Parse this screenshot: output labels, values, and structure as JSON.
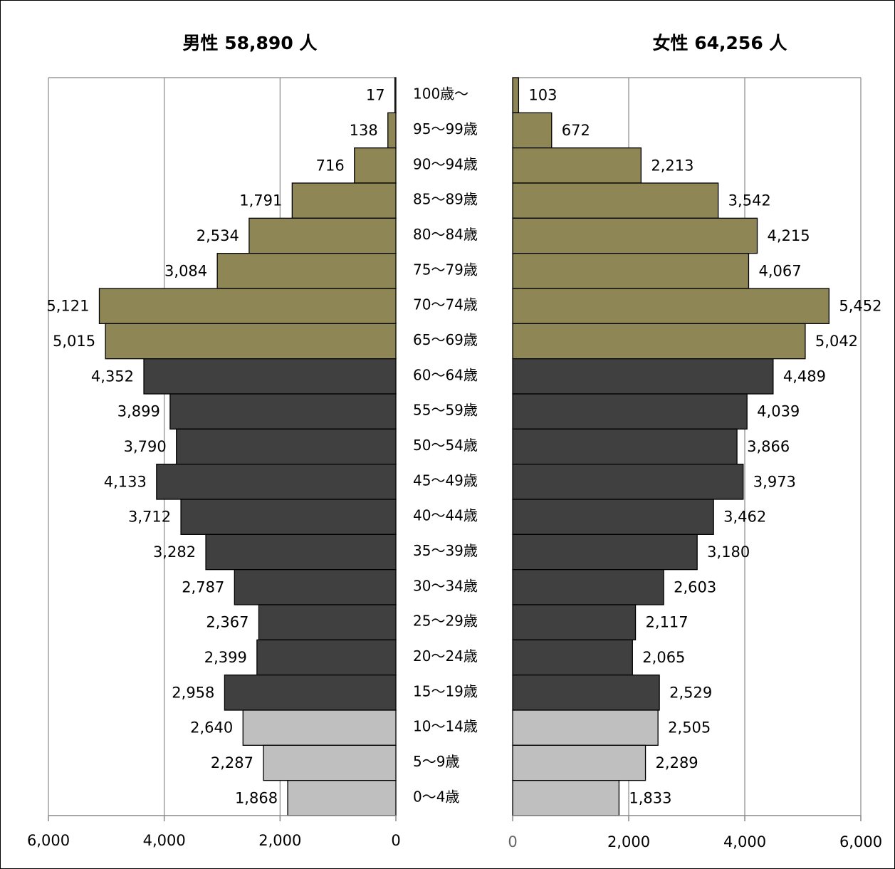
{
  "chart_data": {
    "type": "bar",
    "male_title": "男性 58,890 人",
    "female_title": "女性 64,256 人",
    "categories": [
      "100歳～",
      "95～99歳",
      "90～94歳",
      "85～89歳",
      "80～84歳",
      "75～79歳",
      "70～74歳",
      "65～69歳",
      "60～64歳",
      "55～59歳",
      "50～54歳",
      "45～49歳",
      "40～44歳",
      "35～39歳",
      "30～34歳",
      "25～29歳",
      "20～24歳",
      "15～19歳",
      "10～14歳",
      "5～9歳",
      "0～4歳"
    ],
    "series": [
      {
        "name": "男性",
        "values": [
          17,
          138,
          716,
          1791,
          2534,
          3084,
          5121,
          5015,
          4352,
          3899,
          3790,
          4133,
          3712,
          3282,
          2787,
          2367,
          2399,
          2958,
          2640,
          2287,
          1868
        ]
      },
      {
        "name": "女性",
        "values": [
          103,
          672,
          2213,
          3542,
          4215,
          4067,
          5452,
          5042,
          4489,
          4039,
          3866,
          3973,
          3462,
          3180,
          2603,
          2117,
          2065,
          2529,
          2505,
          2289,
          1833
        ]
      }
    ],
    "value_labels": {
      "male": [
        "17",
        "138",
        "716",
        "1,791",
        "2,534",
        "3,084",
        "5,121",
        "5,015",
        "4,352",
        "3,899",
        "3,790",
        "4,133",
        "3,712",
        "3,282",
        "2,787",
        "2,367",
        "2,399",
        "2,958",
        "2,640",
        "2,287",
        "1,868"
      ],
      "female": [
        "103",
        "672",
        "2,213",
        "3,542",
        "4,215",
        "4,067",
        "5,452",
        "5,042",
        "4,489",
        "4,039",
        "3,866",
        "3,973",
        "3,462",
        "3,180",
        "2,603",
        "2,117",
        "2,065",
        "2,529",
        "2,505",
        "2,289",
        "1,833"
      ]
    },
    "age_groups": [
      {
        "color": "#8f8656",
        "from": 0,
        "to": 7
      },
      {
        "color": "#404040",
        "from": 8,
        "to": 17
      },
      {
        "color": "#bfbfbf",
        "from": 18,
        "to": 20
      }
    ],
    "xlim": [
      0,
      6000
    ],
    "male_ticks": [
      "6,000",
      "4,000",
      "2,000",
      "0"
    ],
    "female_ticks": [
      "0",
      "2,000",
      "4,000",
      "6,000"
    ],
    "grid": true
  }
}
